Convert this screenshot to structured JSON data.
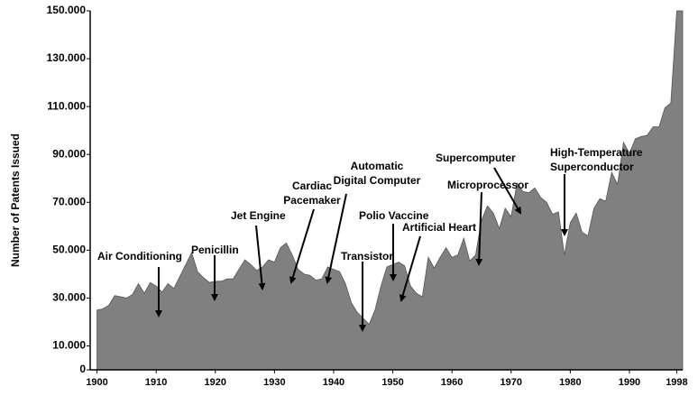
{
  "chart_data": {
    "type": "area",
    "ylabel": "Number of Patents Issued",
    "color": "#808080",
    "x": [
      1900,
      1901,
      1902,
      1903,
      1904,
      1905,
      1906,
      1907,
      1908,
      1909,
      1910,
      1911,
      1912,
      1913,
      1914,
      1915,
      1916,
      1917,
      1918,
      1919,
      1920,
      1921,
      1922,
      1923,
      1924,
      1925,
      1926,
      1927,
      1928,
      1929,
      1930,
      1931,
      1932,
      1933,
      1934,
      1935,
      1936,
      1937,
      1938,
      1939,
      1940,
      1941,
      1942,
      1943,
      1944,
      1945,
      1946,
      1947,
      1948,
      1949,
      1950,
      1951,
      1952,
      1953,
      1954,
      1955,
      1956,
      1957,
      1958,
      1959,
      1960,
      1961,
      1962,
      1963,
      1964,
      1965,
      1966,
      1967,
      1968,
      1969,
      1970,
      1971,
      1972,
      1973,
      1974,
      1975,
      1976,
      1977,
      1978,
      1979,
      1980,
      1981,
      1982,
      1983,
      1984,
      1985,
      1986,
      1987,
      1988,
      1989,
      1990,
      1991,
      1992,
      1993,
      1994,
      1995,
      1996,
      1997,
      1998
    ],
    "values": [
      25000,
      25500,
      27000,
      31000,
      30500,
      30000,
      31500,
      36000,
      32000,
      36500,
      35000,
      32500,
      36000,
      34000,
      39000,
      44000,
      49000,
      41000,
      38500,
      36500,
      37000,
      37000,
      38000,
      38000,
      42000,
      46000,
      44000,
      41500,
      43000,
      46000,
      45000,
      51000,
      53000,
      48000,
      42000,
      40000,
      39500,
      37500,
      38000,
      43000,
      42000,
      41000,
      36000,
      28000,
      24000,
      21500,
      19000,
      25000,
      35000,
      43000,
      44000,
      45000,
      43500,
      35000,
      32000,
      30500,
      47000,
      42500,
      47000,
      51000,
      47000,
      48000,
      55000,
      45500,
      48000,
      62500,
      68500,
      65500,
      59000,
      67500,
      64000,
      78000,
      74500,
      74000,
      76000,
      72000,
      70000,
      65000,
      66000,
      48000,
      61500,
      65500,
      57500,
      56000,
      67500,
      71500,
      70500,
      82500,
      77500,
      95000,
      90500,
      96500,
      97500,
      98000,
      101500,
      101500,
      109500,
      111500,
      150000
    ],
    "xlim": [
      1899,
      1999
    ],
    "xticks": [
      1900,
      1910,
      1920,
      1930,
      1940,
      1950,
      1960,
      1970,
      1980,
      1990,
      1998
    ],
    "ylim": [
      0,
      150000
    ],
    "yticks": [
      0,
      {
        "value": 10000,
        "label": "10.000"
      },
      {
        "value": 30000,
        "label": "30.000"
      },
      {
        "value": 50000,
        "label": "50.000"
      },
      {
        "value": 70000,
        "label": "70.000"
      },
      {
        "value": 90000,
        "label": "90.000"
      },
      {
        "value": 110000,
        "label": "110.000"
      },
      {
        "value": 130000,
        "label": "130.000"
      },
      {
        "value": 150000,
        "label": "150.000"
      }
    ],
    "annotations": [
      [
        "Air Conditioning"
      ],
      [
        "Penicillin"
      ],
      [
        "Jet Engine"
      ],
      [
        "Cardiac",
        "Pacemaker"
      ],
      [
        "Automatic",
        "Digital Computer"
      ],
      [
        "Transistor"
      ],
      [
        "Polio Vaccine"
      ],
      [
        "Artificial Heart"
      ],
      [
        "Microprocessor"
      ],
      [
        "Supercomputer"
      ],
      [
        "High-Temperature",
        "Superconductor"
      ]
    ]
  }
}
